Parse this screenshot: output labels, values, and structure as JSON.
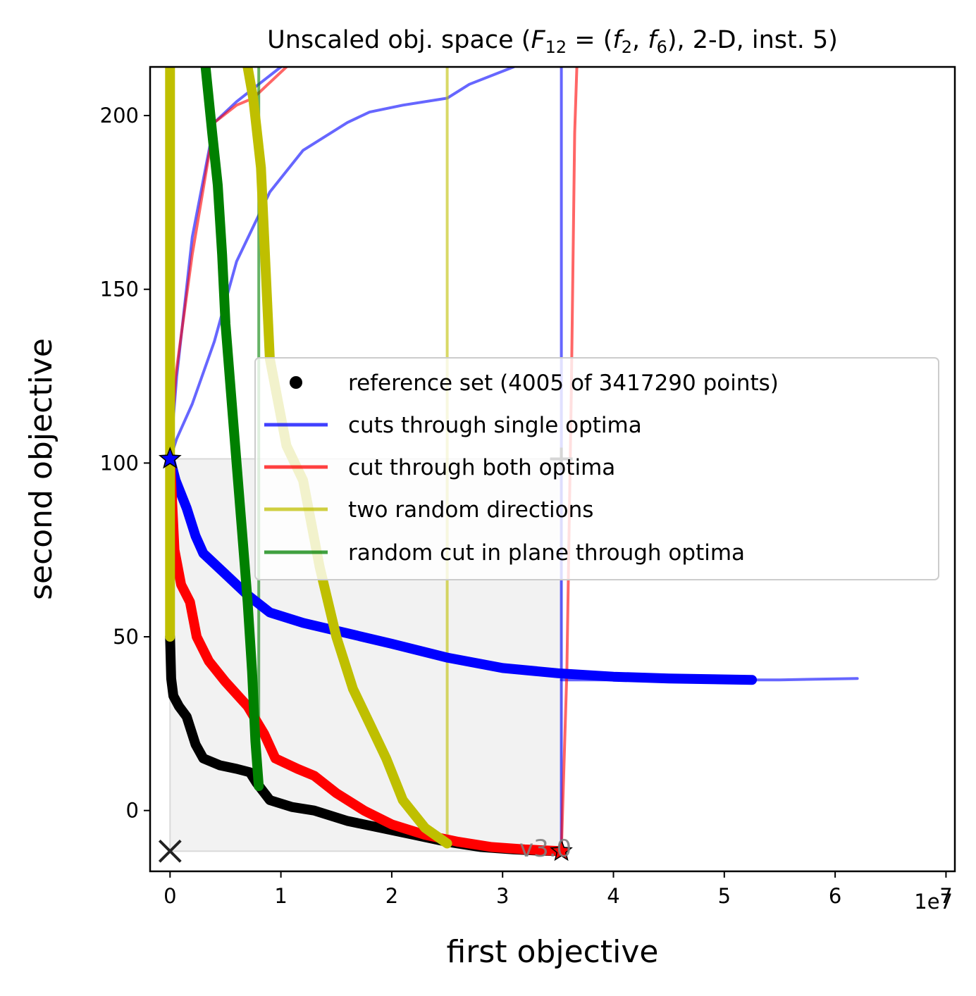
{
  "chart_data": {
    "type": "line",
    "title_parts": {
      "prefix": "Unscaled obj. space (",
      "F": "F",
      "F_sub": "12",
      "mid1": " = (",
      "fa": "f",
      "fa_sub": "2",
      "comma": ", ",
      "fb": "f",
      "fb_sub": "6",
      "suffix": "), 2-D, inst. 5)"
    },
    "xlabel": "first objective",
    "ylabel": "second objective",
    "x_offset_label": "1e7",
    "watermark": "v3.0",
    "xlim": [
      -1800000,
      70800000
    ],
    "ylim": [
      -17.5,
      214
    ],
    "xticks": [
      0,
      10000000,
      20000000,
      30000000,
      40000000,
      50000000,
      60000000,
      70000000
    ],
    "xtick_labels": [
      "0",
      "1",
      "2",
      "3",
      "4",
      "5",
      "6",
      "7"
    ],
    "yticks": [
      0,
      50,
      100,
      150,
      200
    ],
    "ytick_labels": [
      "0",
      "50",
      "100",
      "150",
      "200"
    ],
    "legend": {
      "placement": "center-right",
      "entries": [
        {
          "label": "reference set (4005 of 3417290 points)",
          "color": "#000000",
          "marker": "dot"
        },
        {
          "label": "cuts through single optima",
          "color": "#0000ff",
          "marker": "line"
        },
        {
          "label": "cut through both optima",
          "color": "#ff0000",
          "marker": "line"
        },
        {
          "label": "two random directions",
          "color": "#bfbf00",
          "marker": "line"
        },
        {
          "label": "random cut in plane through optima",
          "color": "#008000",
          "marker": "line"
        }
      ]
    },
    "region": {
      "x": [
        0,
        35300000
      ],
      "y": [
        -11.7,
        101.2
      ],
      "color": "#f2f2f2"
    },
    "optima": [
      {
        "x": 0,
        "y": 101.2,
        "color": "#0000ff",
        "marker": "star"
      },
      {
        "x": 35300000,
        "y": -11.7,
        "color": "#ff0000",
        "marker": "star"
      }
    ],
    "ideal_point": {
      "x": 0,
      "y": -11.7,
      "marker": "x"
    },
    "nadir_point": {
      "x": 35300000,
      "y": 101.2,
      "marker": "plus"
    },
    "series": [
      {
        "name": "reference set (4005 of 3417290 points)",
        "kind": "front",
        "color": "#000000",
        "width": 14,
        "x": [
          0,
          100000,
          300000,
          800000,
          1500000,
          2300000,
          3000000,
          4500000,
          6000000,
          7200000,
          7800000,
          9000000,
          11000000,
          13000000,
          16000000,
          19000000,
          22000000,
          25000000,
          28000000,
          31000000,
          33000000,
          35300000
        ],
        "y": [
          50,
          38,
          33,
          30,
          27,
          19,
          15,
          13,
          12,
          11,
          8,
          3,
          1,
          0,
          -3,
          -5,
          -7,
          -9,
          -10.5,
          -11.2,
          -11.5,
          -11.7
        ]
      },
      {
        "name": "cuts through single optima",
        "kind": "front",
        "color": "#0000ff",
        "width": 14,
        "x": [
          0,
          500000,
          1500000,
          2300000,
          3000000,
          5000000,
          7000000,
          9000000,
          12000000,
          16000000,
          20000000,
          25000000,
          30000000,
          35000000,
          40000000,
          45000000,
          52500000
        ],
        "y": [
          101.2,
          95,
          87,
          79,
          74,
          68,
          62,
          57,
          54,
          51,
          48,
          44,
          41,
          39.5,
          38.5,
          38,
          37.6
        ]
      },
      {
        "name": "cut through both optima",
        "kind": "front",
        "color": "#ff0000",
        "width": 14,
        "x": [
          0,
          400000,
          1000000,
          1800000,
          2400000,
          3500000,
          5000000,
          7000000,
          8500000,
          9500000,
          11500000,
          13000000,
          15000000,
          17500000,
          20000000,
          23000000,
          26000000,
          29000000,
          32000000,
          35300000
        ],
        "y": [
          101.2,
          75,
          65,
          60,
          50,
          43,
          37,
          30,
          22,
          15,
          12,
          10,
          5,
          0,
          -4,
          -7,
          -9,
          -10.5,
          -11.2,
          -11.7
        ]
      },
      {
        "name": "two random directions",
        "kind": "front",
        "color": "#bfbf00",
        "width": 14,
        "x": [
          0,
          0,
          0,
          0
        ],
        "y": [
          214,
          150,
          100,
          50
        ]
      },
      {
        "name": "two random directions",
        "kind": "front",
        "color": "#bfbf00",
        "width": 14,
        "x": [
          7000000,
          7500000,
          8200000,
          9000000,
          10500000,
          12000000,
          13500000,
          15000000,
          16500000,
          18000000,
          19500000,
          21000000,
          23000000,
          25000000
        ],
        "y": [
          214,
          205,
          185,
          130,
          105,
          95,
          70,
          50,
          35,
          25,
          15,
          3,
          -5,
          -9.5
        ]
      },
      {
        "name": "random cut in plane through optima",
        "kind": "front",
        "color": "#008000",
        "width": 14,
        "x": [
          3200000,
          3800000,
          4300000,
          4700000,
          5000000,
          5500000,
          6000000,
          6500000,
          7000000,
          7400000,
          7700000,
          8000000
        ],
        "y": [
          214,
          195,
          180,
          160,
          140,
          120,
          100,
          80,
          60,
          40,
          20,
          7
        ]
      },
      {
        "name": "cuts through single optima",
        "kind": "cut",
        "color": "#0000ff",
        "width": 4,
        "opacity": 0.6,
        "x": [
          0,
          600000,
          2000000,
          4000000,
          6000000,
          9000000,
          12000000,
          16000000,
          18000000,
          21000000,
          25000000,
          27000000,
          31000000
        ],
        "y": [
          101.2,
          107,
          117,
          135,
          158,
          178,
          190,
          198,
          201,
          203,
          205,
          209,
          214
        ]
      },
      {
        "name": "cuts through single optima",
        "kind": "cut",
        "color": "#0000ff",
        "width": 4,
        "opacity": 0.6,
        "x": [
          0,
          600000,
          2000000,
          4000000,
          6000000,
          10000000
        ],
        "y": [
          101.2,
          125,
          165,
          198,
          204,
          214
        ]
      },
      {
        "name": "cuts through single optima",
        "kind": "cut",
        "color": "#0000ff",
        "width": 4,
        "opacity": 0.6,
        "x": [
          35300000,
          35300000,
          35300000
        ],
        "y": [
          -11.7,
          100,
          214
        ]
      },
      {
        "name": "cuts through single optima",
        "kind": "cut",
        "color": "#0000ff",
        "width": 4,
        "opacity": 0.6,
        "x": [
          35300000,
          40000000,
          45000000,
          50000000,
          55000000,
          62000000
        ],
        "y": [
          37.6,
          37.6,
          37.6,
          37.6,
          37.6,
          38
        ]
      },
      {
        "name": "cut through both optima",
        "kind": "cut",
        "color": "#ff0000",
        "width": 4,
        "opacity": 0.6,
        "x": [
          0,
          500000,
          2000000,
          4000000,
          6000000,
          7500000,
          10500000
        ],
        "y": [
          101.2,
          125,
          160,
          198,
          203,
          205,
          214
        ]
      },
      {
        "name": "cut through both optima",
        "kind": "cut",
        "color": "#ff0000",
        "width": 4,
        "opacity": 0.6,
        "x": [
          35300000,
          35800000,
          36200000,
          36500000,
          36700000
        ],
        "y": [
          -11.7,
          40,
          120,
          195,
          214
        ]
      },
      {
        "name": "two random directions",
        "kind": "cut",
        "color": "#bfbf00",
        "width": 4,
        "opacity": 0.6,
        "x": [
          25000000,
          25000000,
          25000000
        ],
        "y": [
          -9.5,
          100,
          214
        ]
      },
      {
        "name": "random cut in plane through optima",
        "kind": "cut",
        "color": "#008000",
        "width": 4,
        "opacity": 0.6,
        "x": [
          8000000,
          8000000,
          8000000
        ],
        "y": [
          7,
          100,
          214
        ]
      }
    ]
  }
}
